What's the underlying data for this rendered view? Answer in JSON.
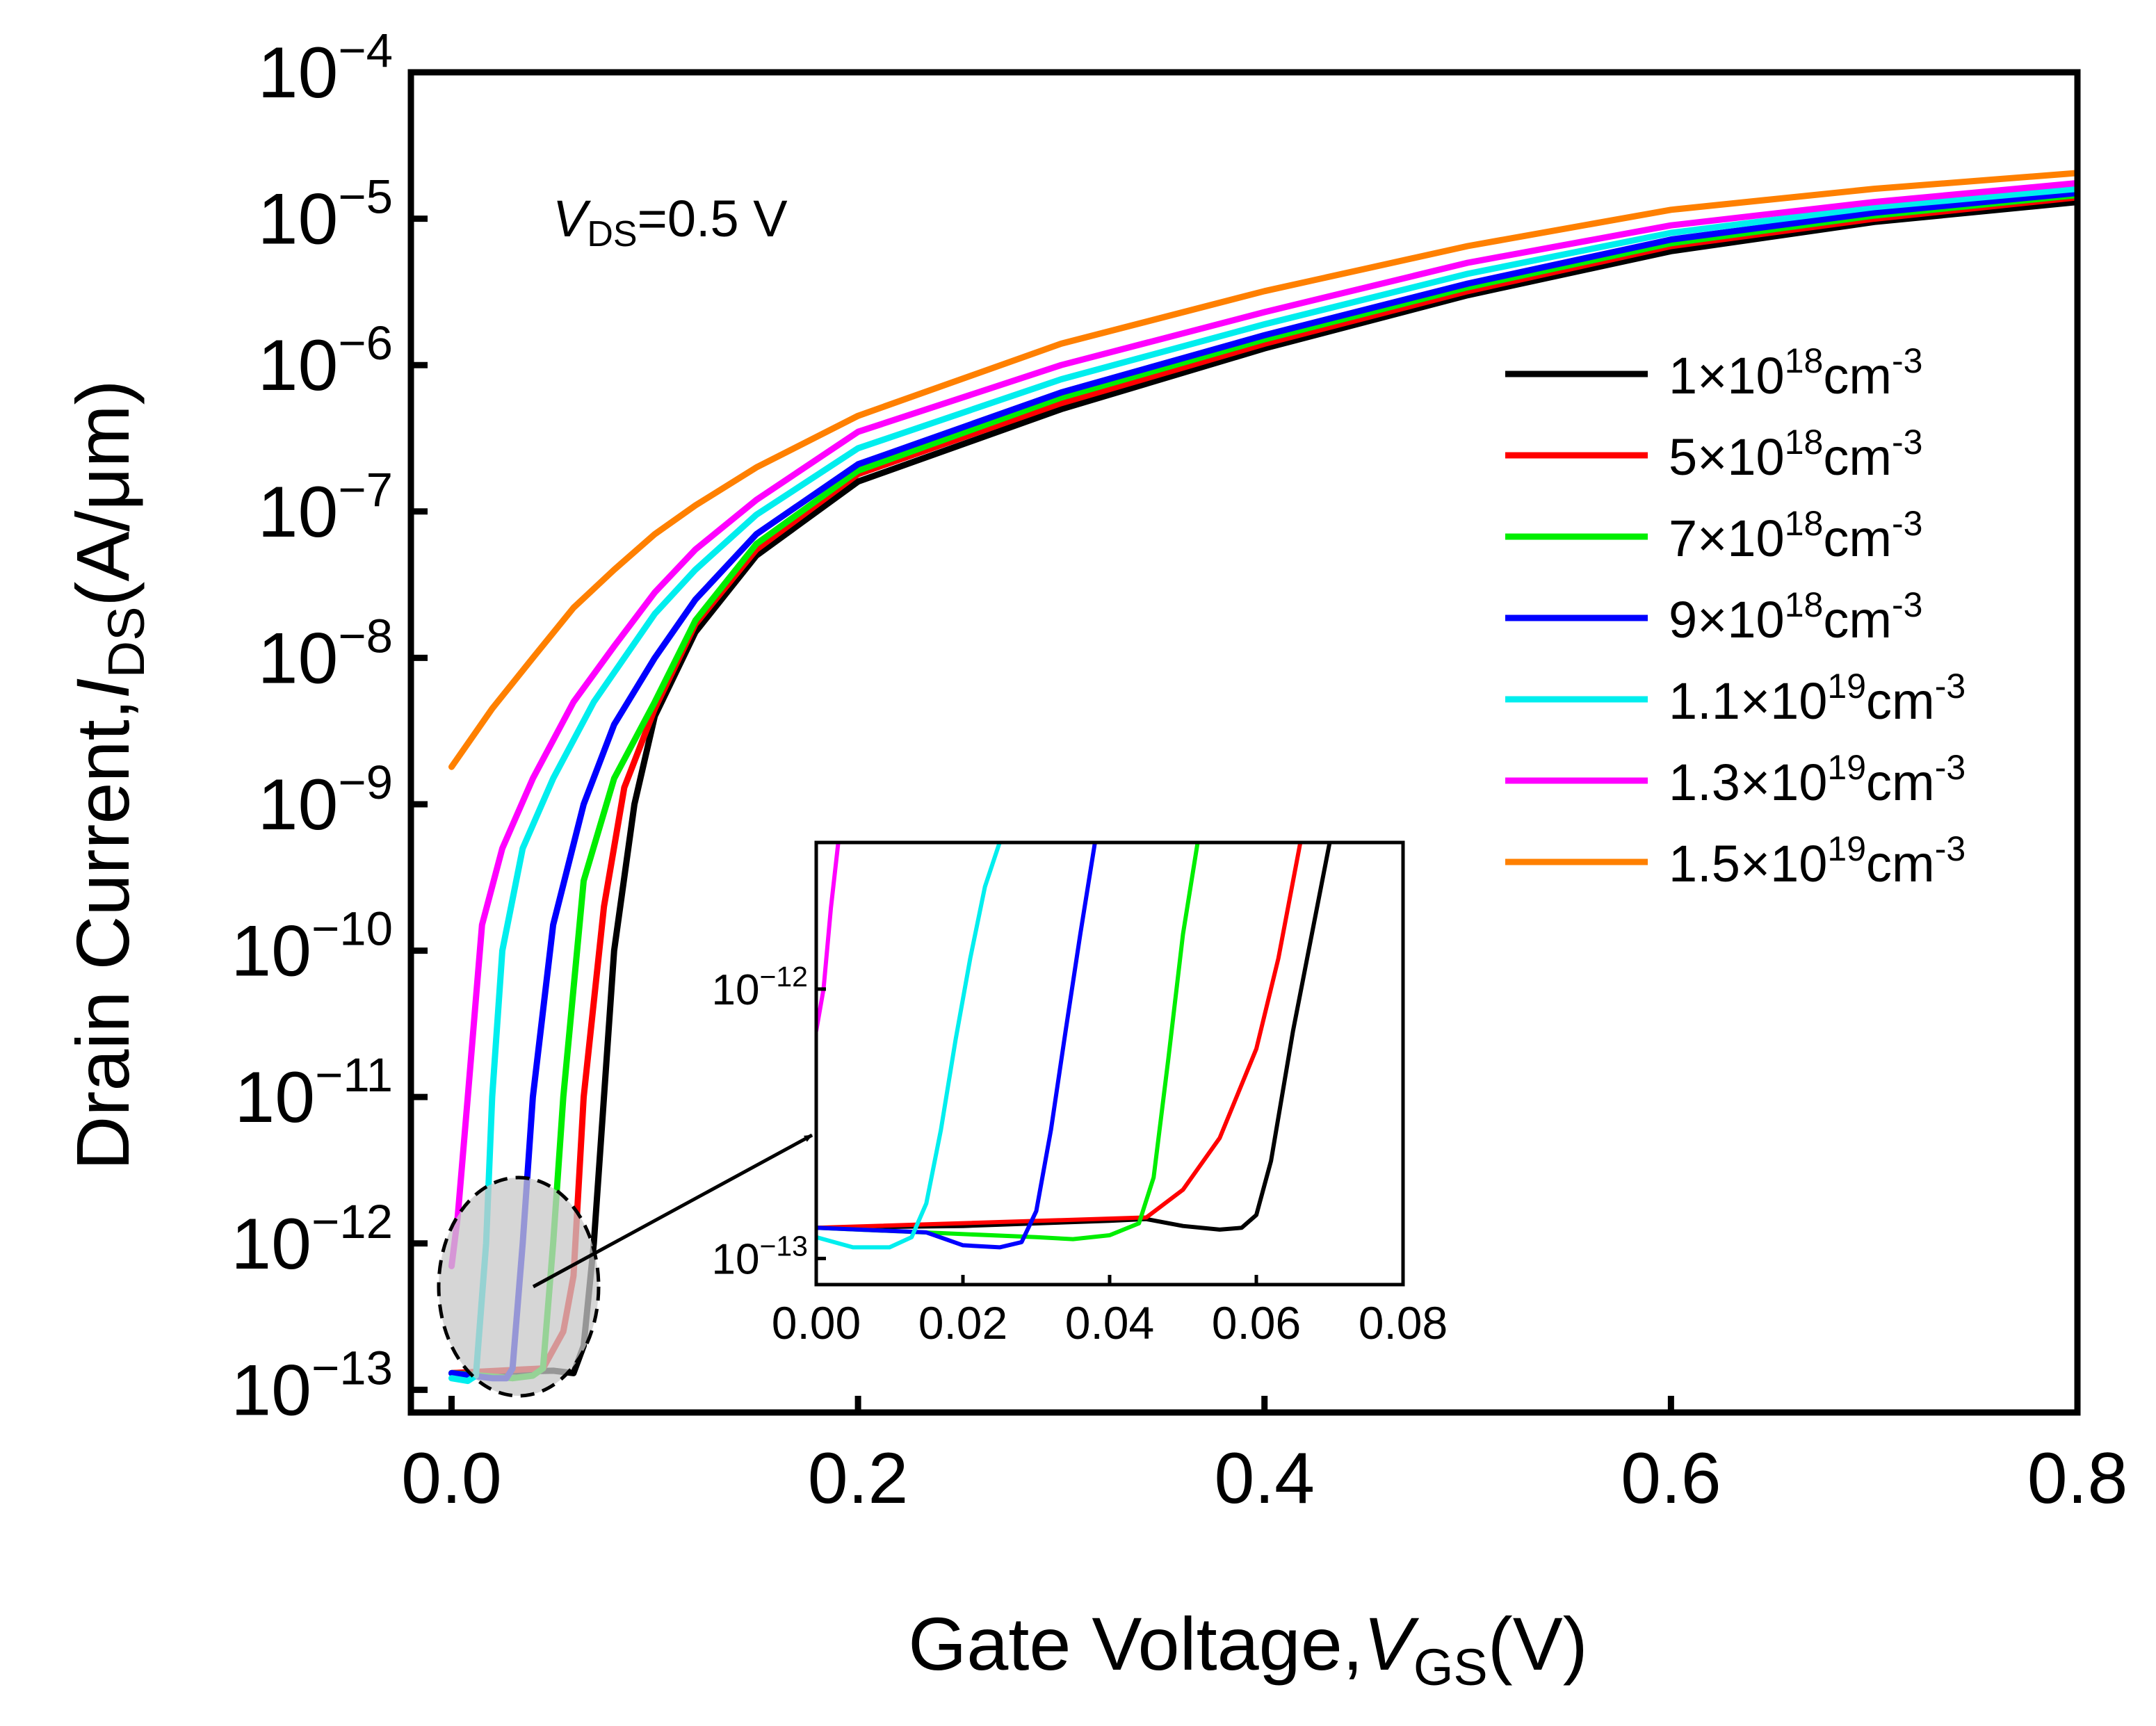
{
  "chart_data": {
    "type": "line",
    "xlabel": {
      "main": "Gate Voltage,",
      "var": "V",
      "sub": "GS",
      "unit": "(V)"
    },
    "ylabel": {
      "main": "Drain Current,",
      "var": "I",
      "sub": "DS",
      "unit": "(A/μm)"
    },
    "annotation": {
      "var": "V",
      "sub": "DS",
      "text": "=0.5 V"
    },
    "x_axis": {
      "range": [
        -0.02,
        0.8
      ],
      "ticks": [
        0.0,
        0.2,
        0.4,
        0.6,
        0.8
      ],
      "tick_labels": [
        "0.0",
        "0.2",
        "0.4",
        "0.6",
        "0.8"
      ],
      "scale": "linear"
    },
    "y_axis": {
      "range": [
        7e-14,
        0.0001
      ],
      "scale": "log",
      "ticks": [
        1e-13,
        1e-12,
        1e-11,
        1e-10,
        1e-09,
        1e-08,
        1e-07,
        1e-06,
        1e-05,
        0.0001
      ],
      "tick_exponents": [
        "−13",
        "−12",
        "−11",
        "−10",
        "−9",
        "−8",
        "−7",
        "−6",
        "−5",
        "−4"
      ],
      "tick_base": "10"
    },
    "grid": false,
    "legend_position": "right",
    "series": [
      {
        "name": "1×10",
        "exp": "18",
        "unit": "cm",
        "unit_exp": "-3",
        "color": "#000000",
        "x": [
          0.0,
          0.05,
          0.06,
          0.065,
          0.07,
          0.08,
          0.09,
          0.1,
          0.12,
          0.15,
          0.2,
          0.3,
          0.4,
          0.5,
          0.6,
          0.7,
          0.8
        ],
        "y": [
          1.3e-13,
          1.35e-13,
          1.3e-13,
          2e-13,
          1e-12,
          1e-10,
          1e-09,
          4e-09,
          1.5e-08,
          5e-08,
          1.6e-07,
          5e-07,
          1.3e-06,
          3e-06,
          6e-06,
          9.5e-06,
          1.3e-05
        ]
      },
      {
        "name": "5×10",
        "exp": "18",
        "unit": "cm",
        "unit_exp": "-3",
        "color": "#ff0000",
        "x": [
          0.0,
          0.045,
          0.055,
          0.06,
          0.065,
          0.075,
          0.085,
          0.1,
          0.12,
          0.15,
          0.2,
          0.3,
          0.4,
          0.5,
          0.6,
          0.7,
          0.8
        ],
        "y": [
          1.3e-13,
          1.4e-13,
          2.5e-13,
          6e-13,
          1e-11,
          2e-10,
          1.3e-09,
          4.5e-09,
          1.7e-08,
          5.5e-08,
          1.8e-07,
          5.5e-07,
          1.4e-06,
          3.2e-06,
          6.5e-06,
          1e-05,
          1.4e-05
        ]
      },
      {
        "name": "7×10",
        "exp": "18",
        "unit": "cm",
        "unit_exp": "-3",
        "color": "#00ee00",
        "x": [
          0.0,
          0.03,
          0.04,
          0.045,
          0.05,
          0.055,
          0.065,
          0.08,
          0.1,
          0.12,
          0.15,
          0.2,
          0.3,
          0.4,
          0.5,
          0.6,
          0.7,
          0.8
        ],
        "y": [
          1.3e-13,
          1.2e-13,
          1.25e-13,
          1.4e-13,
          1e-12,
          1e-11,
          3e-10,
          1.5e-09,
          5e-09,
          1.8e-08,
          6e-08,
          1.9e-07,
          6e-07,
          1.5e-06,
          3.4e-06,
          6.8e-06,
          1.05e-05,
          1.45e-05
        ]
      },
      {
        "name": "9×10",
        "exp": "18",
        "unit": "cm",
        "unit_exp": "-3",
        "color": "#0000ff",
        "x": [
          0.0,
          0.02,
          0.027,
          0.03,
          0.035,
          0.04,
          0.05,
          0.065,
          0.08,
          0.1,
          0.12,
          0.15,
          0.2,
          0.3,
          0.4,
          0.5,
          0.6,
          0.7,
          0.8
        ],
        "y": [
          1.3e-13,
          1.2e-13,
          1.2e-13,
          1.4e-13,
          1e-12,
          1e-11,
          1.5e-10,
          1e-09,
          3.5e-09,
          1e-08,
          2.5e-08,
          7e-08,
          2.1e-07,
          6.5e-07,
          1.6e-06,
          3.6e-06,
          7.2e-06,
          1.1e-05,
          1.5e-05
        ]
      },
      {
        "name": "1.1×10",
        "exp": "19",
        "unit": "cm",
        "unit_exp": "-3",
        "color": "#00eeee",
        "x": [
          0.0,
          0.008,
          0.012,
          0.017,
          0.02,
          0.025,
          0.035,
          0.05,
          0.07,
          0.1,
          0.12,
          0.15,
          0.2,
          0.3,
          0.4,
          0.5,
          0.6,
          0.7,
          0.8
        ],
        "y": [
          1.2e-13,
          1.15e-13,
          1.25e-13,
          1e-12,
          1e-11,
          1e-10,
          5e-10,
          1.5e-09,
          5e-09,
          2e-08,
          4e-08,
          9.5e-08,
          2.7e-07,
          8e-07,
          1.9e-06,
          4.2e-06,
          8e-06,
          1.2e-05,
          1.6e-05
        ]
      },
      {
        "name": "1.3×10",
        "exp": "19",
        "unit": "cm",
        "unit_exp": "-3",
        "color": "#ff00ff",
        "x": [
          0.0,
          0.003,
          0.008,
          0.015,
          0.025,
          0.04,
          0.06,
          0.08,
          0.1,
          0.12,
          0.15,
          0.2,
          0.3,
          0.4,
          0.5,
          0.6,
          0.7,
          0.8
        ],
        "y": [
          7e-13,
          1.5e-12,
          1e-11,
          1.5e-10,
          5e-10,
          1.5e-09,
          5e-09,
          1.2e-08,
          2.8e-08,
          5.5e-08,
          1.2e-07,
          3.5e-07,
          1e-06,
          2.3e-06,
          5e-06,
          9e-06,
          1.3e-05,
          1.75e-05
        ]
      },
      {
        "name": "1.5×10",
        "exp": "19",
        "unit": "cm",
        "unit_exp": "-3",
        "color": "#ff8000",
        "x": [
          0.0,
          0.02,
          0.04,
          0.06,
          0.08,
          0.1,
          0.12,
          0.15,
          0.2,
          0.3,
          0.4,
          0.5,
          0.6,
          0.7,
          0.8
        ],
        "y": [
          1.8e-09,
          4.5e-09,
          1e-08,
          2.2e-08,
          4e-08,
          7e-08,
          1.1e-07,
          2e-07,
          4.5e-07,
          1.4e-06,
          3.2e-06,
          6.5e-06,
          1.15e-05,
          1.6e-05,
          2.05e-05
        ]
      }
    ],
    "inset": {
      "x_range": [
        0.0,
        0.08
      ],
      "y_range": [
        8e-14,
        3.5e-12
      ],
      "y_scale": "log",
      "x_ticks": [
        0.0,
        0.02,
        0.04,
        0.06,
        0.08
      ],
      "x_tick_labels": [
        "0.00",
        "0.02",
        "0.04",
        "0.06",
        "0.08"
      ],
      "y_ticks": [
        1e-13,
        1e-12
      ],
      "y_tick_exponents": [
        "−13",
        "−12"
      ],
      "y_tick_base": "10",
      "series": [
        {
          "color": "#000000",
          "x": [
            0.0,
            0.02,
            0.04,
            0.045,
            0.05,
            0.055,
            0.058,
            0.06,
            0.062,
            0.065,
            0.07
          ],
          "y": [
            1.3e-13,
            1.32e-13,
            1.38e-13,
            1.4e-13,
            1.32e-13,
            1.28e-13,
            1.3e-13,
            1.45e-13,
            2.3e-13,
            7e-13,
            3.5e-12
          ]
        },
        {
          "color": "#ff0000",
          "x": [
            0.0,
            0.045,
            0.05,
            0.055,
            0.06,
            0.063,
            0.066
          ],
          "y": [
            1.3e-13,
            1.42e-13,
            1.8e-13,
            2.8e-13,
            6e-13,
            1.3e-12,
            3.5e-12
          ]
        },
        {
          "color": "#00ee00",
          "x": [
            0.0,
            0.03,
            0.035,
            0.04,
            0.044,
            0.046,
            0.048,
            0.05,
            0.052
          ],
          "y": [
            1.3e-13,
            1.2e-13,
            1.18e-13,
            1.22e-13,
            1.35e-13,
            2e-13,
            5.5e-13,
            1.6e-12,
            3.5e-12
          ]
        },
        {
          "color": "#0000ff",
          "x": [
            0.0,
            0.015,
            0.02,
            0.025,
            0.028,
            0.03,
            0.032,
            0.034,
            0.036,
            0.038
          ],
          "y": [
            1.3e-13,
            1.25e-13,
            1.12e-13,
            1.1e-13,
            1.15e-13,
            1.5e-13,
            3e-13,
            7e-13,
            1.6e-12,
            3.5e-12
          ]
        },
        {
          "color": "#00eeee",
          "x": [
            0.0,
            0.005,
            0.01,
            0.013,
            0.015,
            0.017,
            0.019,
            0.021,
            0.023,
            0.025
          ],
          "y": [
            1.2e-13,
            1.1e-13,
            1.1e-13,
            1.2e-13,
            1.6e-13,
            3e-13,
            6.5e-13,
            1.3e-12,
            2.4e-12,
            3.5e-12
          ]
        },
        {
          "color": "#ff00ff",
          "x": [
            0.0,
            0.001,
            0.002,
            0.003
          ],
          "y": [
            7e-13,
            1e-12,
            2e-12,
            3.5e-12
          ]
        }
      ]
    }
  }
}
